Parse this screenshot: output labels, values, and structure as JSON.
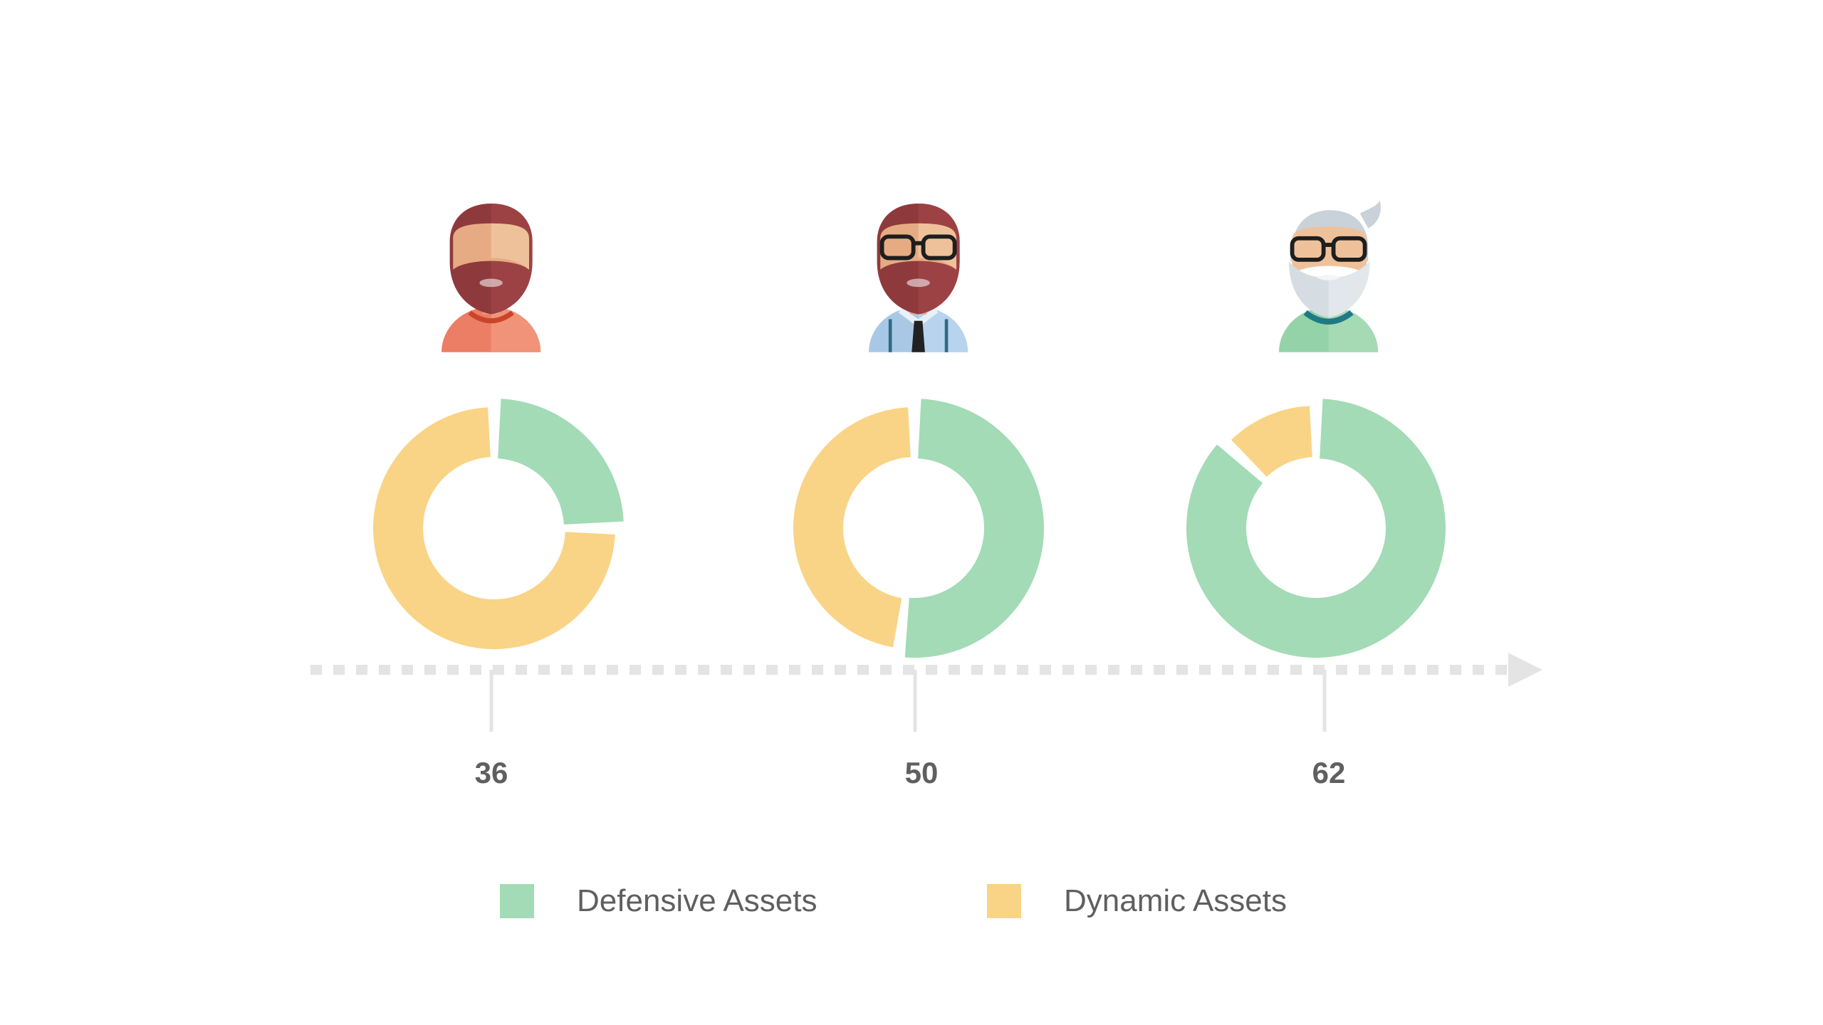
{
  "colors": {
    "defensive": "#a2dbb5",
    "dynamic": "#f9d486",
    "axis": "#e4e4e4",
    "label": "#5f5f5f"
  },
  "chart_data": {
    "type": "pie",
    "variant": "donut",
    "x_axis": "timeline with arrow",
    "legend_position": "bottom",
    "series_names": [
      "Defensive Assets",
      "Dynamic Assets"
    ],
    "categories": [
      "36",
      "50",
      "62"
    ],
    "series": [
      {
        "name": "Defensive Assets",
        "values": [
          25,
          52,
          87
        ]
      },
      {
        "name": "Dynamic Assets",
        "values": [
          75,
          48,
          13
        ]
      }
    ],
    "donuts": [
      {
        "age": "36",
        "avatar": "young-bearded-man-icon",
        "defensive": 25,
        "dynamic": 75
      },
      {
        "age": "50",
        "avatar": "middle-aged-man-with-glasses-icon",
        "defensive": 52,
        "dynamic": 48
      },
      {
        "age": "62",
        "avatar": "elderly-man-with-glasses-icon",
        "defensive": 87,
        "dynamic": 13
      }
    ]
  },
  "legend": {
    "defensive_label": "Defensive Assets",
    "dynamic_label": "Dynamic Assets"
  }
}
